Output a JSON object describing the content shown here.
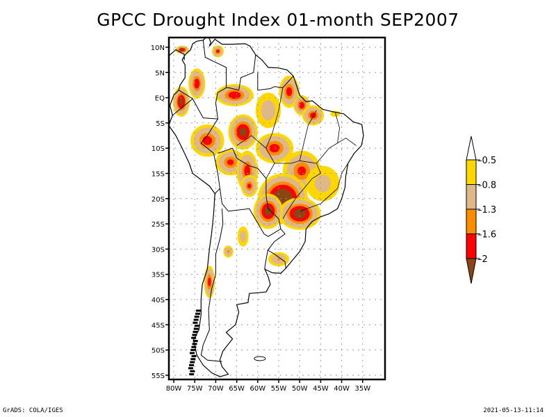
{
  "title": "GPCC Drought Index 01-month SEP2007",
  "footer": {
    "left": "GrADS: COLA/IGES",
    "right": "2021-05-13-11:14"
  },
  "chart_data": {
    "type": "heatmap",
    "title": "GPCC Drought Index 01-month SEP2007",
    "variable": "Drought Index (1-month)",
    "period": "SEP2007",
    "region": "South America",
    "lon_range": [
      -81.3,
      -33.8
    ],
    "lat_range": [
      -56,
      12
    ],
    "x_ticks": [
      "80W",
      "75W",
      "70W",
      "65W",
      "60W",
      "55W",
      "50W",
      "45W",
      "40W",
      "35W"
    ],
    "x_tick_values": [
      -80,
      -75,
      -70,
      -65,
      -60,
      -55,
      -50,
      -45,
      -40,
      -35
    ],
    "y_ticks": [
      "10N",
      "5N",
      "EQ",
      "5S",
      "10S",
      "15S",
      "20S",
      "25S",
      "30S",
      "35S",
      "40S",
      "45S",
      "50S",
      "55S"
    ],
    "y_tick_values": [
      10,
      5,
      0,
      -5,
      -10,
      -15,
      -20,
      -25,
      -30,
      -35,
      -40,
      -45,
      -50,
      -55
    ],
    "grid": true,
    "colorbar": {
      "placement": "right",
      "levels": [
        "-0.5",
        "-0.8",
        "-1.3",
        "-1.6",
        "-2"
      ],
      "colors": [
        "#ffffff",
        "#ffd700",
        "#deb887",
        "#ff8c00",
        "#ff0000",
        "#8b4513"
      ],
      "bins": [
        {
          "range": "> -0.5",
          "color": "#ffffff"
        },
        {
          "range": "-0.8 to -0.5",
          "color": "#ffd700"
        },
        {
          "range": "-1.3 to -0.8",
          "color": "#deb887"
        },
        {
          "range": "-1.6 to -1.3",
          "color": "#ff8c00"
        },
        {
          "range": "-2 to -1.6",
          "color": "#ff0000"
        },
        {
          "range": "< -2",
          "color": "#8b4513"
        }
      ]
    },
    "anomalies": [
      {
        "name": "caribbean-venezuela",
        "lon": -78,
        "lat": 9.5,
        "rx": 1.6,
        "ry": 0.8,
        "min": -2.2
      },
      {
        "name": "venezuela-north",
        "lon": -69.5,
        "lat": 9.2,
        "rx": 1.4,
        "ry": 1.2,
        "min": -1.8
      },
      {
        "name": "colombia-west",
        "lon": -74.5,
        "lat": 2.8,
        "rx": 2.0,
        "ry": 3.0,
        "min": -1.9
      },
      {
        "name": "ecuador",
        "lon": -78.2,
        "lat": -0.8,
        "rx": 2.0,
        "ry": 3.0,
        "min": -2.2
      },
      {
        "name": "amazon-north",
        "lon": -65.5,
        "lat": 0.5,
        "rx": 4.5,
        "ry": 2.2,
        "min": -1.9
      },
      {
        "name": "amapa",
        "lon": -52.5,
        "lat": 1.2,
        "rx": 2.4,
        "ry": 3.2,
        "min": -1.8
      },
      {
        "name": "para-north",
        "lon": -49.5,
        "lat": -1.5,
        "rx": 2.0,
        "ry": 2.0,
        "min": -1.9
      },
      {
        "name": "maranhao",
        "lon": -46.8,
        "lat": -3.5,
        "rx": 2.6,
        "ry": 2.0,
        "min": -1.8
      },
      {
        "name": "para-central",
        "lon": -57.5,
        "lat": -2.5,
        "rx": 3.0,
        "ry": 3.5,
        "min": -1.1
      },
      {
        "name": "amazon-west",
        "lon": -72,
        "lat": -8.5,
        "rx": 4.0,
        "ry": 3.2,
        "min": -1.8
      },
      {
        "name": "amazon-central",
        "lon": -63.5,
        "lat": -6.8,
        "rx": 3.5,
        "ry": 3.5,
        "min": -2.2
      },
      {
        "name": "rondonia",
        "lon": -56,
        "lat": -10,
        "rx": 4.5,
        "ry": 3.0,
        "min": -1.8
      },
      {
        "name": "peru-bolivia",
        "lon": -66.5,
        "lat": -12.8,
        "rx": 3.5,
        "ry": 2.6,
        "min": -1.7
      },
      {
        "name": "bolivia-east",
        "lon": -62.5,
        "lat": -14.5,
        "rx": 2.6,
        "ry": 4.0,
        "min": -1.8
      },
      {
        "name": "bolivia-south",
        "lon": -62,
        "lat": -17.5,
        "rx": 2.0,
        "ry": 2.2,
        "min": -1.7
      },
      {
        "name": "goias",
        "lon": -49.5,
        "lat": -14.5,
        "rx": 4.5,
        "ry": 4.0,
        "min": -1.7
      },
      {
        "name": "minas-gerais",
        "lon": -44.5,
        "lat": -17,
        "rx": 4.0,
        "ry": 3.5,
        "min": -1.0
      },
      {
        "name": "mato-grosso-sul",
        "lon": -54,
        "lat": -20,
        "rx": 6.0,
        "ry": 5.0,
        "min": -2.6
      },
      {
        "name": "parana",
        "lon": -50,
        "lat": -23,
        "rx": 5.0,
        "ry": 3.2,
        "min": -2.3
      },
      {
        "name": "paraguay",
        "lon": -57.5,
        "lat": -22.5,
        "rx": 3.5,
        "ry": 3.5,
        "min": -2.2
      },
      {
        "name": "argentina-north",
        "lon": -63.5,
        "lat": -27.5,
        "rx": 1.3,
        "ry": 2.0,
        "min": -1.1
      },
      {
        "name": "argentina-center",
        "lon": -67,
        "lat": -30.5,
        "rx": 1.2,
        "ry": 1.2,
        "min": -1.4
      },
      {
        "name": "uruguay",
        "lon": -55,
        "lat": -32,
        "rx": 2.5,
        "ry": 1.4,
        "min": -1.3
      },
      {
        "name": "chile-central",
        "lon": -71.5,
        "lat": -36.5,
        "rx": 1.3,
        "ry": 3.2,
        "min": -1.8
      },
      {
        "name": "ceara",
        "lon": -41.5,
        "lat": -3.2,
        "rx": 1.2,
        "ry": 0.6,
        "min": -0.6
      }
    ]
  }
}
